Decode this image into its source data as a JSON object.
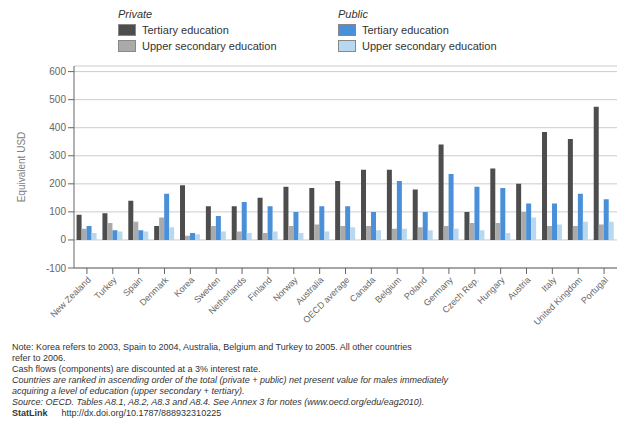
{
  "chart_data": {
    "type": "bar",
    "categories": [
      "New Zealand",
      "Turkey",
      "Spain",
      "Denmark",
      "Korea",
      "Sweden",
      "Netherlands",
      "Finland",
      "Norway",
      "Australia",
      "OECD average",
      "Canada",
      "Belgium",
      "Poland",
      "Germany",
      "Czech Rep.",
      "Hungary",
      "Austria",
      "Italy",
      "United Kingdom",
      "Portugal"
    ],
    "series": [
      {
        "name": "Tertiary education",
        "color": "#4d4d4d",
        "values": [
          90,
          95,
          140,
          50,
          195,
          120,
          120,
          150,
          190,
          185,
          210,
          250,
          250,
          180,
          340,
          100,
          255,
          200,
          385,
          360,
          475
        ]
      },
      {
        "name": "Upper secondary education",
        "color": "#aaaaaa",
        "values": [
          40,
          60,
          65,
          80,
          15,
          50,
          30,
          25,
          50,
          55,
          50,
          50,
          40,
          45,
          50,
          60,
          60,
          100,
          50,
          50,
          55
        ]
      },
      {
        "name": "Tertiary education",
        "color": "#4a90d9",
        "values": [
          50,
          35,
          35,
          165,
          25,
          85,
          135,
          120,
          100,
          120,
          120,
          100,
          210,
          100,
          235,
          190,
          185,
          130,
          130,
          165,
          145
        ]
      },
      {
        "name": "Upper secondary education",
        "color": "#b8d8f0",
        "values": [
          25,
          30,
          30,
          45,
          20,
          30,
          25,
          30,
          25,
          30,
          45,
          35,
          40,
          35,
          40,
          35,
          25,
          80,
          55,
          65,
          65
        ]
      }
    ],
    "y_label": "Equivalent USD",
    "ylim": [
      -100,
      620
    ],
    "yticks": [
      -100,
      0,
      100,
      200,
      300,
      400,
      500,
      600
    ],
    "grid": true,
    "annotations": [
      "Private",
      "Public",
      "Note: Korea refers to 2003, Spain to 2004, Australia, Belgium and Turkey to 2005. All other countries",
      "refer to 2006.",
      "Cash flows (components) are discounted at a 3% interest rate.",
      "Countries are ranked in ascending order of the total (private + public) net present value for males immediately",
      "acquiring a level of education (upper secondary + tertiary).",
      "Source: OECD. Tables A8.1, A8.2, A8.3 and A8.4. See Annex 3 for notes (www.oecd.org/edu/eag2010).",
      "StatLink",
      "http://dx.doi.org/10.1787/888932310225"
    ]
  }
}
